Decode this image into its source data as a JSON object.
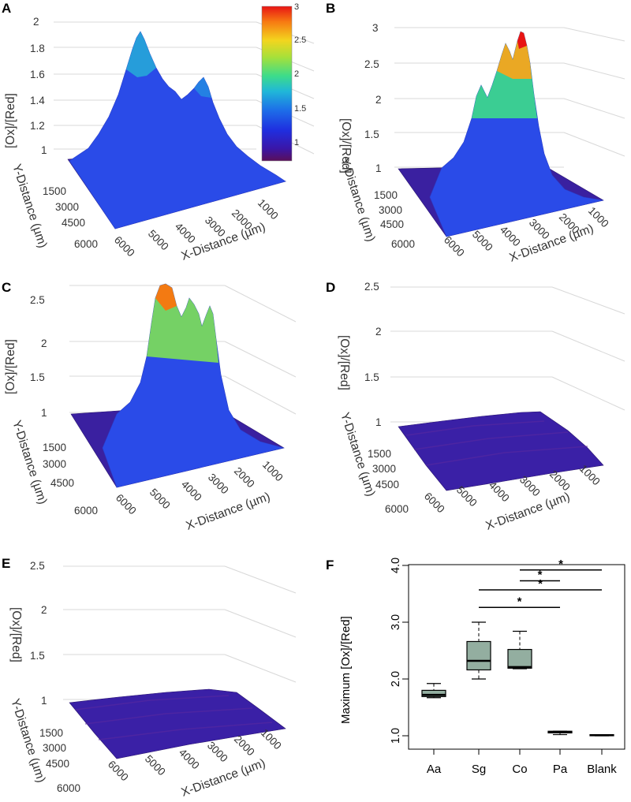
{
  "colors": {
    "colorscale": [
      "#5a0f5a",
      "#3a16a8",
      "#1f2fe0",
      "#1d6fe8",
      "#20b7d8",
      "#3ddc8a",
      "#a6e03a",
      "#f3d51e",
      "#f77a12",
      "#e81414"
    ],
    "box_fill": "#93aea0",
    "grid": "#d8d8d8"
  },
  "panels": [
    {
      "letter": "A",
      "z_label": "[Ox]/[Red]",
      "y_label": "Y-Distance (µm)",
      "x_label": "X-Distance (µm)",
      "z_ticks": [
        "1",
        "1.2",
        "1.4",
        "1.6",
        "1.8",
        "2"
      ],
      "y_ticks": [
        "1500",
        "3000",
        "4500",
        "6000"
      ],
      "x_ticks": [
        "6000",
        "5000",
        "4000",
        "3000",
        "2000",
        "1000"
      ],
      "peak_max": 1.9
    },
    {
      "letter": "B",
      "z_label": "[Ox]/[Red]",
      "y_label": "Y-Distance (µm)",
      "x_label": "X-Distance (µm)",
      "z_ticks": [
        "1",
        "1.5",
        "2",
        "2.5",
        "3"
      ],
      "y_ticks": [
        "1500",
        "3000",
        "4500",
        "6000"
      ],
      "x_ticks": [
        "6000",
        "5000",
        "4000",
        "3000",
        "2000",
        "1000"
      ],
      "peak_max": 2.95
    },
    {
      "letter": "C",
      "z_label": "[Ox]/[Red]",
      "y_label": "Y-Distance (µm)",
      "x_label": "X-Distance (µm)",
      "z_ticks": [
        "1",
        "1.5",
        "2",
        "2.5"
      ],
      "y_ticks": [
        "1500",
        "3000",
        "4500",
        "6000"
      ],
      "x_ticks": [
        "6000",
        "5000",
        "4000",
        "3000",
        "2000",
        "1000"
      ],
      "peak_max": 2.7
    },
    {
      "letter": "D",
      "z_label": "[Ox]/[Red]",
      "y_label": "Y-Distance (µm)",
      "x_label": "X-Distance (µm)",
      "z_ticks": [
        "1",
        "1.5",
        "2",
        "2.5"
      ],
      "y_ticks": [
        "1500",
        "3000",
        "4500",
        "6000"
      ],
      "x_ticks": [
        "6000",
        "5000",
        "4000",
        "3000",
        "2000",
        "1000"
      ],
      "peak_max": 1.05
    },
    {
      "letter": "E",
      "z_label": "[Ox]/[Red]",
      "y_label": "Y-Distance (µm)",
      "x_label": "X-Distance (µm)",
      "z_ticks": [
        "1",
        "1.5",
        "2",
        "2.5"
      ],
      "y_ticks": [
        "1500",
        "3000",
        "4500",
        "6000"
      ],
      "x_ticks": [
        "6000",
        "5000",
        "4000",
        "3000",
        "2000",
        "1000"
      ],
      "peak_max": 1.02
    }
  ],
  "colorbar": {
    "ticks": [
      "1",
      "1.5",
      "2",
      "2.5",
      "3"
    ]
  },
  "chart_data": {
    "type": "box",
    "letter": "F",
    "categories": [
      "Aa",
      "Sg",
      "Co",
      "Pa",
      "Blank"
    ],
    "ylabel": "Maximum [Ox]/[Red]",
    "ylim": [
      0.9,
      4.0
    ],
    "ytick_values": [
      1.0,
      2.0,
      3.0,
      4.0
    ],
    "ytick_labels": [
      "1.0",
      "2.0",
      "3.0",
      "4.0"
    ],
    "boxes": [
      {
        "name": "Aa",
        "min": 1.67,
        "q1": 1.69,
        "median": 1.72,
        "q3": 1.8,
        "max": 1.92
      },
      {
        "name": "Sg",
        "min": 2.0,
        "q1": 2.16,
        "median": 2.32,
        "q3": 2.66,
        "max": 3.0
      },
      {
        "name": "Co",
        "min": 2.18,
        "q1": 2.19,
        "median": 2.21,
        "q3": 2.52,
        "max": 2.84
      },
      {
        "name": "Pa",
        "min": 1.02,
        "q1": 1.05,
        "median": 1.06,
        "q3": 1.08,
        "max": 1.08
      },
      {
        "name": "Blank",
        "min": 1.0,
        "q1": 1.0,
        "median": 1.01,
        "q3": 1.02,
        "max": 1.02
      }
    ],
    "significance": [
      {
        "from": "Co",
        "to": "Blank",
        "y": 3.92,
        "label": "*"
      },
      {
        "from": "Co",
        "to": "Pa",
        "y": 3.73,
        "label": "*"
      },
      {
        "from": "Sg",
        "to": "Blank",
        "y": 3.57,
        "label": "*"
      },
      {
        "from": "Sg",
        "to": "Pa",
        "y": 3.26,
        "label": "*"
      }
    ]
  }
}
